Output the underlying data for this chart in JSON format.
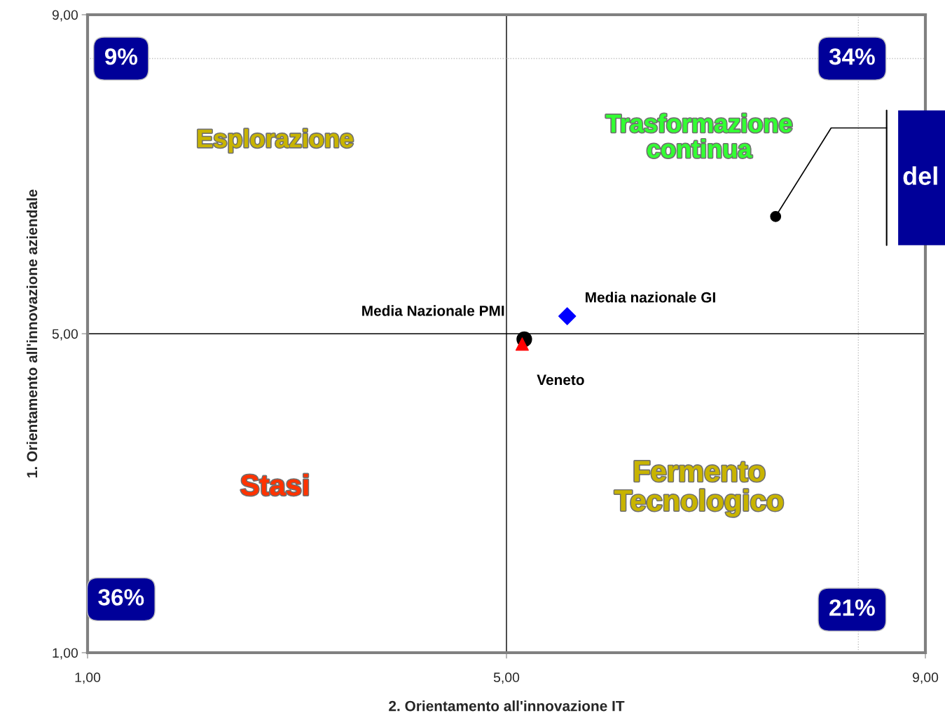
{
  "chart_data": {
    "type": "scatter",
    "xlabel": "2. Orientamento all'innovazione IT",
    "ylabel": "1. Orientamento all'innovazione aziendale",
    "xlim": [
      1,
      9
    ],
    "ylim": [
      1,
      9
    ],
    "xticks": [
      {
        "value": 1,
        "label": "1,00"
      },
      {
        "value": 5,
        "label": "5,00"
      },
      {
        "value": 9,
        "label": "9,00"
      }
    ],
    "yticks": [
      {
        "value": 1,
        "label": "1,00"
      },
      {
        "value": 5,
        "label": "5,00"
      },
      {
        "value": 9,
        "label": "9,00"
      }
    ],
    "grid": false,
    "series": [
      {
        "name": "Media Nazionale PMI",
        "color": "#000000",
        "marker": "circle",
        "x": [
          5.17
        ],
        "values": [
          4.93
        ]
      },
      {
        "name": "Veneto",
        "color": "#ff0000",
        "marker": "triangle",
        "x": [
          5.15
        ],
        "values": [
          4.87
        ]
      },
      {
        "name": "Media nazionale GI",
        "color": "#0000ff",
        "marker": "diamond",
        "x": [
          5.58
        ],
        "values": [
          5.22
        ]
      },
      {
        "color": "#000000",
        "marker": "circle",
        "x": [
          7.57
        ],
        "values": [
          6.47
        ]
      }
    ],
    "ref_lines": [
      {
        "axis": "x",
        "value": 5,
        "color": "#000000",
        "line_style": "solid"
      },
      {
        "axis": "y",
        "value": 5,
        "color": "#000000",
        "line_style": "solid"
      },
      {
        "axis": "y",
        "value": 8.45,
        "color": "#c0c0c0",
        "line_style": "dotted"
      },
      {
        "axis": "x",
        "value": 8.36,
        "color": "#c0c0c0",
        "line_style": "dotted"
      }
    ],
    "annotations": [
      "9%",
      "34%",
      "36%",
      "21%",
      "Esplorazione",
      "Trasformazione\ncontinua",
      "Stasi",
      "Fermento\nTecnologico",
      "del"
    ]
  }
}
